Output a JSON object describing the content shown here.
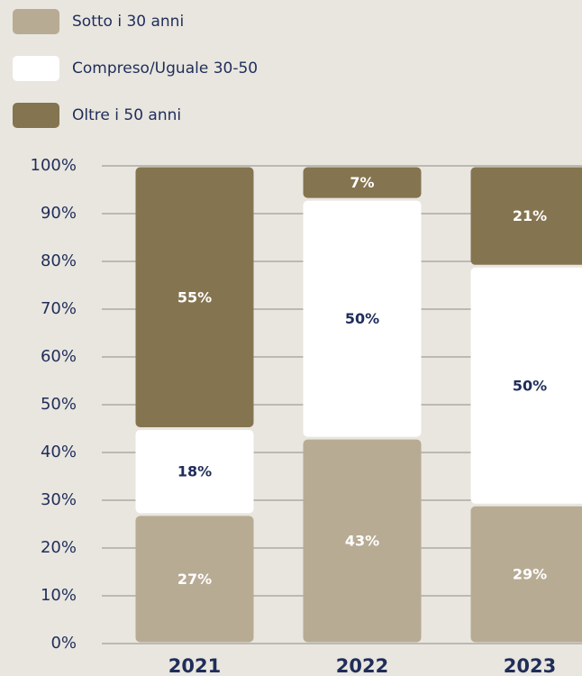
{
  "chart_data": {
    "type": "stacked_bar",
    "categories": [
      "2021",
      "2022",
      "2023"
    ],
    "series": [
      {
        "name": "Sotto i 30 anni",
        "color": "#b7ab93",
        "label_color": "#ffffff",
        "values": [
          27,
          43,
          29
        ],
        "value_labels": [
          "27%",
          "43%",
          "29%"
        ]
      },
      {
        "name": "Compreso/Uguale 30-50",
        "color": "#ffffff",
        "label_color": "#1f2d5a",
        "values": [
          18,
          50,
          50
        ],
        "value_labels": [
          "18%",
          "50%",
          "50%"
        ]
      },
      {
        "name": "Oltre i 50 anni",
        "color": "#857450",
        "label_color": "#ffffff",
        "values": [
          55,
          7,
          21
        ],
        "value_labels": [
          "55%",
          "7%",
          "21%"
        ]
      }
    ],
    "ylim": [
      0,
      100
    ],
    "yticks": [
      {
        "value": 0,
        "label": "0%"
      },
      {
        "value": 10,
        "label": "10%"
      },
      {
        "value": 20,
        "label": "20%"
      },
      {
        "value": 30,
        "label": "30%"
      },
      {
        "value": 40,
        "label": "40%"
      },
      {
        "value": 50,
        "label": "50%"
      },
      {
        "value": 60,
        "label": "60%"
      },
      {
        "value": 70,
        "label": "70%"
      },
      {
        "value": 80,
        "label": "80%"
      },
      {
        "value": 90,
        "label": "90%"
      },
      {
        "value": 100,
        "label": "100%"
      }
    ],
    "grid": true,
    "legend": "top-left"
  }
}
